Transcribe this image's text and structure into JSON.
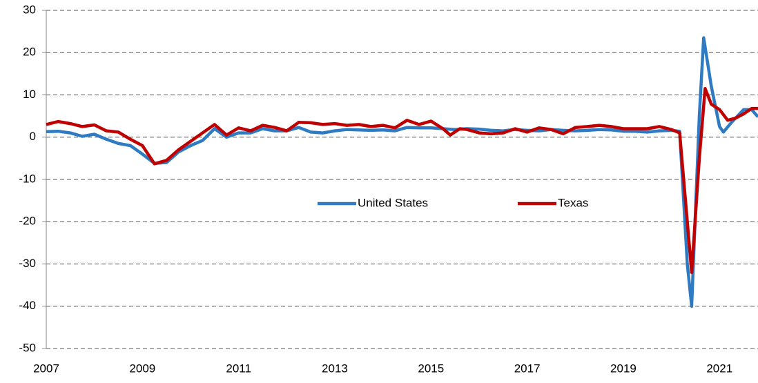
{
  "chart_data": {
    "type": "line",
    "xlim": [
      2007,
      2021.8
    ],
    "xticks": [
      2007,
      2009,
      2011,
      2013,
      2015,
      2017,
      2019,
      2021
    ],
    "ylim": [
      -50,
      30
    ],
    "yticks": [
      -50,
      -40,
      -30,
      -20,
      -10,
      0,
      10,
      20,
      30
    ],
    "grid": true,
    "legend": "center",
    "series": [
      {
        "name": "United States",
        "color": "#2e7bc4",
        "x": [
          2007,
          2007.25,
          2007.5,
          2007.75,
          2008,
          2008.25,
          2008.5,
          2008.75,
          2009,
          2009.25,
          2009.5,
          2009.75,
          2010,
          2010.25,
          2010.5,
          2010.75,
          2011,
          2011.25,
          2011.5,
          2011.75,
          2012,
          2012.25,
          2012.5,
          2012.75,
          2013,
          2013.25,
          2013.5,
          2013.75,
          2014,
          2014.25,
          2014.5,
          2014.75,
          2015,
          2015.25,
          2015.5,
          2015.75,
          2016,
          2016.25,
          2016.5,
          2016.75,
          2017,
          2017.25,
          2017.5,
          2017.75,
          2018,
          2018.25,
          2018.5,
          2018.75,
          2019,
          2019.25,
          2019.5,
          2019.75,
          2020,
          2020.17,
          2020.33,
          2020.42,
          2020.58,
          2020.67,
          2020.83,
          2021,
          2021.08,
          2021.25,
          2021.5,
          2021.67,
          2021.8
        ],
        "values": [
          1.3,
          1.4,
          1.0,
          0.2,
          0.7,
          -0.5,
          -1.5,
          -2.0,
          -4.0,
          -6.2,
          -6.0,
          -3.5,
          -2.0,
          -0.8,
          2.0,
          0.0,
          1.0,
          1.0,
          2.0,
          1.5,
          1.5,
          2.3,
          1.2,
          1.0,
          1.5,
          1.8,
          1.7,
          1.6,
          1.7,
          1.5,
          2.3,
          2.2,
          2.2,
          2.0,
          1.8,
          2.0,
          1.9,
          1.6,
          1.5,
          1.8,
          1.6,
          1.5,
          1.8,
          1.6,
          1.5,
          1.6,
          1.8,
          1.7,
          1.4,
          1.4,
          1.2,
          1.5,
          1.6,
          1.4,
          -30,
          -40,
          5,
          23.5,
          12,
          2.5,
          1.2,
          3.5,
          6.5,
          6.5,
          4.8
        ]
      },
      {
        "name": "Texas",
        "color": "#c00000",
        "x": [
          2007,
          2007.25,
          2007.5,
          2007.75,
          2008,
          2008.25,
          2008.5,
          2008.75,
          2009,
          2009.25,
          2009.5,
          2009.75,
          2010,
          2010.25,
          2010.5,
          2010.75,
          2011,
          2011.25,
          2011.5,
          2011.75,
          2012,
          2012.25,
          2012.5,
          2012.75,
          2013,
          2013.25,
          2013.5,
          2013.75,
          2014,
          2014.25,
          2014.5,
          2014.75,
          2015,
          2015.25,
          2015.4,
          2015.6,
          2015.75,
          2016,
          2016.25,
          2016.5,
          2016.75,
          2017,
          2017.25,
          2017.5,
          2017.75,
          2018,
          2018.25,
          2018.5,
          2018.75,
          2019,
          2019.25,
          2019.5,
          2019.75,
          2020,
          2020.17,
          2020.33,
          2020.42,
          2020.58,
          2020.7,
          2020.83,
          2021,
          2021.17,
          2021.33,
          2021.5,
          2021.67,
          2021.8
        ],
        "values": [
          3.0,
          3.7,
          3.2,
          2.5,
          2.9,
          1.5,
          1.2,
          -0.5,
          -2.0,
          -6.3,
          -5.5,
          -3.0,
          -1.0,
          1.0,
          3.0,
          0.5,
          2.2,
          1.5,
          2.8,
          2.3,
          1.5,
          3.5,
          3.4,
          3.0,
          3.2,
          2.8,
          3.0,
          2.5,
          2.8,
          2.2,
          4.0,
          3.0,
          3.8,
          2.0,
          0.5,
          2.0,
          1.8,
          1.0,
          0.8,
          1.0,
          2.0,
          1.2,
          2.2,
          1.8,
          0.8,
          2.3,
          2.5,
          2.8,
          2.5,
          2.0,
          2.0,
          2.0,
          2.5,
          1.8,
          1.0,
          -20,
          -32,
          -5,
          11.5,
          7.8,
          6.5,
          4.0,
          4.5,
          5.5,
          6.8,
          6.8
        ]
      }
    ]
  }
}
